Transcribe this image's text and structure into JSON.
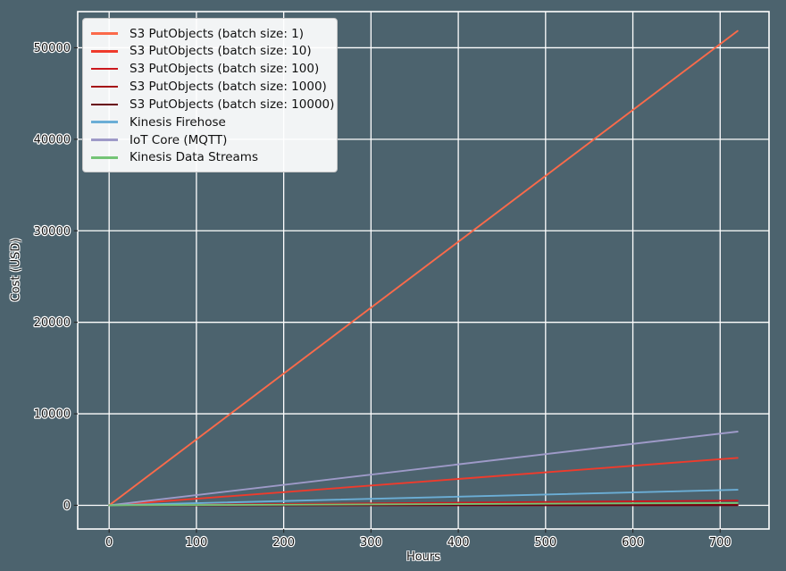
{
  "chart_data": {
    "type": "line",
    "title": "",
    "xlabel": "Hours",
    "ylabel": "Cost (USD)",
    "xlim": [
      -36,
      756
    ],
    "ylim": [
      -2590,
      53950
    ],
    "xticks": [
      0,
      100,
      200,
      300,
      400,
      500,
      600,
      700
    ],
    "yticks": [
      0,
      10000,
      20000,
      30000,
      40000,
      50000
    ],
    "grid": true,
    "legend_position": "upper-left",
    "colors": {
      "background": "#4c636e",
      "grid": "#ffffff",
      "spine": "#ffffff",
      "tick": "#262626",
      "text": "#141414",
      "legend_background": "#ffffff",
      "legend_border": "#c9c9c9"
    },
    "series": [
      {
        "name": "S3 PutObjects (batch size: 1)",
        "color": "#fb6a4a",
        "x": [
          0,
          720
        ],
        "y": [
          0,
          51840
        ]
      },
      {
        "name": "S3 PutObjects (batch size: 10)",
        "color": "#ef3b2c",
        "x": [
          0,
          720
        ],
        "y": [
          0,
          5184
        ]
      },
      {
        "name": "S3 PutObjects (batch size: 100)",
        "color": "#cb181d",
        "x": [
          0,
          720
        ],
        "y": [
          0,
          518
        ]
      },
      {
        "name": "S3 PutObjects (batch size: 1000)",
        "color": "#a50f15",
        "x": [
          0,
          720
        ],
        "y": [
          0,
          52
        ]
      },
      {
        "name": "S3 PutObjects (batch size: 10000)",
        "color": "#67000d",
        "x": [
          0,
          720
        ],
        "y": [
          0,
          5
        ]
      },
      {
        "name": "Kinesis Firehose",
        "color": "#6baed6",
        "x": [
          0,
          720
        ],
        "y": [
          0,
          1700
        ]
      },
      {
        "name": "IoT Core (MQTT)",
        "color": "#9e9ac8",
        "x": [
          0,
          720
        ],
        "y": [
          0,
          8050
        ]
      },
      {
        "name": "Kinesis Data Streams",
        "color": "#74c476",
        "x": [
          0,
          720
        ],
        "y": [
          0,
          250
        ]
      }
    ]
  }
}
